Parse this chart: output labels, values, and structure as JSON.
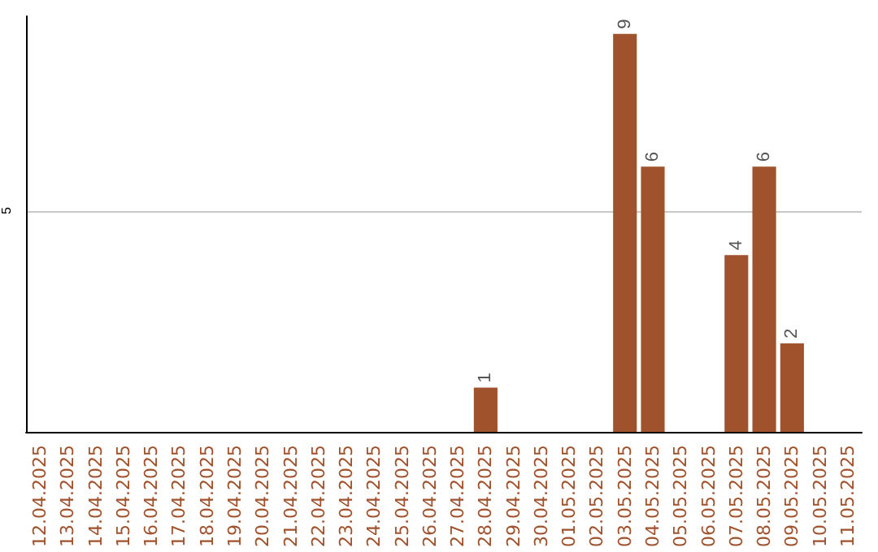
{
  "chart_data": {
    "type": "bar",
    "categories": [
      "12.04.2025",
      "13.04.2025",
      "14.04.2025",
      "15.04.2025",
      "16.04.2025",
      "17.04.2025",
      "18.04.2025",
      "19.04.2025",
      "20.04.2025",
      "21.04.2025",
      "22.04.2025",
      "23.04.2025",
      "24.04.2025",
      "25.04.2025",
      "26.04.2025",
      "27.04.2025",
      "28.04.2025",
      "29.04.2025",
      "30.04.2025",
      "01.05.2025",
      "02.05.2025",
      "03.05.2025",
      "04.05.2025",
      "05.05.2025",
      "06.05.2025",
      "07.05.2025",
      "08.05.2025",
      "09.05.2025",
      "10.05.2025",
      "11.05.2025"
    ],
    "values": [
      null,
      null,
      null,
      null,
      null,
      null,
      null,
      null,
      null,
      null,
      null,
      null,
      null,
      null,
      null,
      null,
      1,
      null,
      null,
      null,
      null,
      9,
      6,
      null,
      null,
      4,
      6,
      2,
      null,
      null
    ],
    "value_labels": [
      null,
      null,
      null,
      null,
      null,
      null,
      null,
      null,
      null,
      null,
      null,
      null,
      null,
      null,
      null,
      null,
      "1",
      null,
      null,
      null,
      null,
      "9",
      "6",
      null,
      null,
      "4",
      "6",
      "2",
      null,
      null
    ],
    "color": "#a0522d",
    "ylim": [
      0,
      9.4
    ],
    "yticks": [
      {
        "value": 0,
        "label": null
      },
      5
    ],
    "grid": "y"
  }
}
